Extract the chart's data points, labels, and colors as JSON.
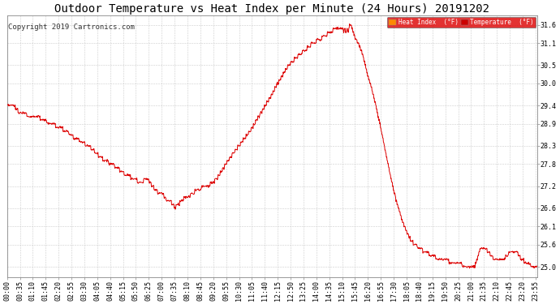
{
  "title": "Outdoor Temperature vs Heat Index per Minute (24 Hours) 20191202",
  "copyright": "Copyright 2019 Cartronics.com",
  "ylim": [
    24.72,
    31.85
  ],
  "yticks": [
    25.0,
    25.6,
    26.1,
    26.6,
    27.2,
    27.8,
    28.3,
    28.9,
    29.4,
    30.0,
    30.5,
    31.1,
    31.6
  ],
  "line_color": "#dd0000",
  "grid_color": "#cccccc",
  "background_color": "#ffffff",
  "plot_bg_color": "#ffffff",
  "legend_heat_index_label": "Heat Index  (°F)",
  "legend_temp_label": "Temperature  (°F)",
  "title_fontsize": 10,
  "copyright_fontsize": 6.5,
  "tick_fontsize": 6,
  "figsize": [
    6.9,
    3.75
  ],
  "dpi": 100,
  "n_minutes": 1440,
  "tick_step_minutes": 35
}
